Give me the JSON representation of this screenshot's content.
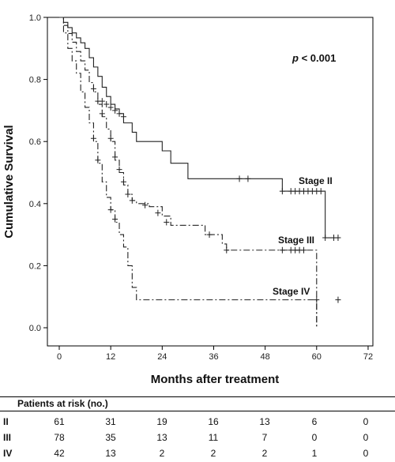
{
  "chart_data": {
    "type": "line",
    "subtype": "kaplan-meier",
    "xlabel": "Months after treatment",
    "ylabel": "Cumulative Survival",
    "xlim": [
      0,
      72
    ],
    "ylim": [
      0,
      1.0
    ],
    "x_ticks": [
      "0",
      "12",
      "24",
      "36",
      "48",
      "60",
      "72"
    ],
    "y_ticks": [
      "0.0",
      "0.2",
      "0.4",
      "0.6",
      "0.8",
      "1.0"
    ],
    "grid": false,
    "annotation": {
      "p_italic": "p",
      "p_rest": " < 0.001"
    },
    "series": [
      {
        "name": "Stage II",
        "line_style": "solid",
        "steps": [
          [
            0,
            1.0
          ],
          [
            1,
            0.984
          ],
          [
            2,
            0.967
          ],
          [
            3,
            0.95
          ],
          [
            4,
            0.934
          ],
          [
            5,
            0.918
          ],
          [
            6,
            0.9
          ],
          [
            7,
            0.87
          ],
          [
            8,
            0.84
          ],
          [
            9,
            0.81
          ],
          [
            10,
            0.775
          ],
          [
            11,
            0.745
          ],
          [
            12,
            0.72
          ],
          [
            13,
            0.705
          ],
          [
            14,
            0.69
          ],
          [
            15,
            0.66
          ],
          [
            17,
            0.63
          ],
          [
            18,
            0.6
          ],
          [
            24,
            0.57
          ],
          [
            26,
            0.53
          ],
          [
            30,
            0.48
          ],
          [
            52,
            0.44
          ],
          [
            62,
            0.29
          ],
          [
            65,
            0.29
          ]
        ],
        "censored": [
          [
            10,
            0.73
          ],
          [
            11,
            0.72
          ],
          [
            12,
            0.71
          ],
          [
            13,
            0.7
          ],
          [
            14,
            0.69
          ],
          [
            15,
            0.68
          ],
          [
            42,
            0.48
          ],
          [
            44,
            0.48
          ],
          [
            52,
            0.44
          ],
          [
            54,
            0.44
          ],
          [
            55,
            0.44
          ],
          [
            56,
            0.44
          ],
          [
            57,
            0.44
          ],
          [
            58,
            0.44
          ],
          [
            59,
            0.44
          ],
          [
            60,
            0.44
          ],
          [
            61,
            0.44
          ],
          [
            62,
            0.29
          ],
          [
            64,
            0.29
          ],
          [
            65,
            0.29
          ]
        ]
      },
      {
        "name": "Stage III",
        "line_style": "dash-dot",
        "steps": [
          [
            0,
            1.0
          ],
          [
            1,
            0.974
          ],
          [
            2,
            0.948
          ],
          [
            3,
            0.92
          ],
          [
            4,
            0.89
          ],
          [
            5,
            0.86
          ],
          [
            6,
            0.83
          ],
          [
            7,
            0.79
          ],
          [
            8,
            0.76
          ],
          [
            9,
            0.72
          ],
          [
            10,
            0.68
          ],
          [
            11,
            0.64
          ],
          [
            12,
            0.6
          ],
          [
            13,
            0.54
          ],
          [
            14,
            0.5
          ],
          [
            15,
            0.46
          ],
          [
            16,
            0.43
          ],
          [
            17,
            0.41
          ],
          [
            18,
            0.4
          ],
          [
            21,
            0.39
          ],
          [
            24,
            0.36
          ],
          [
            26,
            0.33
          ],
          [
            34,
            0.3
          ],
          [
            38,
            0.27
          ],
          [
            39,
            0.25
          ],
          [
            60,
            0.25
          ],
          [
            60,
            0.0
          ]
        ],
        "censored": [
          [
            8,
            0.77
          ],
          [
            9,
            0.73
          ],
          [
            10,
            0.69
          ],
          [
            12,
            0.61
          ],
          [
            13,
            0.55
          ],
          [
            14,
            0.51
          ],
          [
            15,
            0.47
          ],
          [
            16,
            0.43
          ],
          [
            17,
            0.41
          ],
          [
            20,
            0.395
          ],
          [
            23,
            0.37
          ],
          [
            25,
            0.34
          ],
          [
            35,
            0.3
          ],
          [
            39,
            0.25
          ],
          [
            52,
            0.25
          ],
          [
            54,
            0.25
          ],
          [
            55,
            0.25
          ],
          [
            56,
            0.25
          ],
          [
            57,
            0.25
          ]
        ]
      },
      {
        "name": "Stage IV",
        "line_style": "dash-dot",
        "steps": [
          [
            0,
            1.0
          ],
          [
            1,
            0.95
          ],
          [
            2,
            0.9
          ],
          [
            3,
            0.86
          ],
          [
            4,
            0.82
          ],
          [
            5,
            0.76
          ],
          [
            6,
            0.71
          ],
          [
            7,
            0.66
          ],
          [
            8,
            0.6
          ],
          [
            9,
            0.53
          ],
          [
            10,
            0.47
          ],
          [
            11,
            0.42
          ],
          [
            12,
            0.38
          ],
          [
            13,
            0.34
          ],
          [
            14,
            0.3
          ],
          [
            15,
            0.26
          ],
          [
            16,
            0.2
          ],
          [
            17,
            0.13
          ],
          [
            18,
            0.09
          ],
          [
            60,
            0.09
          ],
          [
            60,
            0.0
          ]
        ],
        "censored": [
          [
            8,
            0.61
          ],
          [
            9,
            0.54
          ],
          [
            12,
            0.38
          ],
          [
            13,
            0.35
          ],
          [
            60,
            0.09
          ],
          [
            65,
            0.09
          ]
        ]
      }
    ],
    "series_labels": [
      "Stage II",
      "Stage III",
      "Stage IV"
    ],
    "risk_table": {
      "title": "Patients at risk (no.)",
      "times": [
        0,
        12,
        24,
        36,
        48,
        60,
        72
      ],
      "rows": [
        {
          "label": "II",
          "counts": [
            "61",
            "31",
            "19",
            "16",
            "13",
            "6",
            "0"
          ]
        },
        {
          "label": "III",
          "counts": [
            "78",
            "35",
            "13",
            "11",
            "7",
            "0",
            "0"
          ]
        },
        {
          "label": "IV",
          "counts": [
            "42",
            "13",
            "2",
            "2",
            "2",
            "1",
            "0"
          ]
        }
      ]
    }
  }
}
